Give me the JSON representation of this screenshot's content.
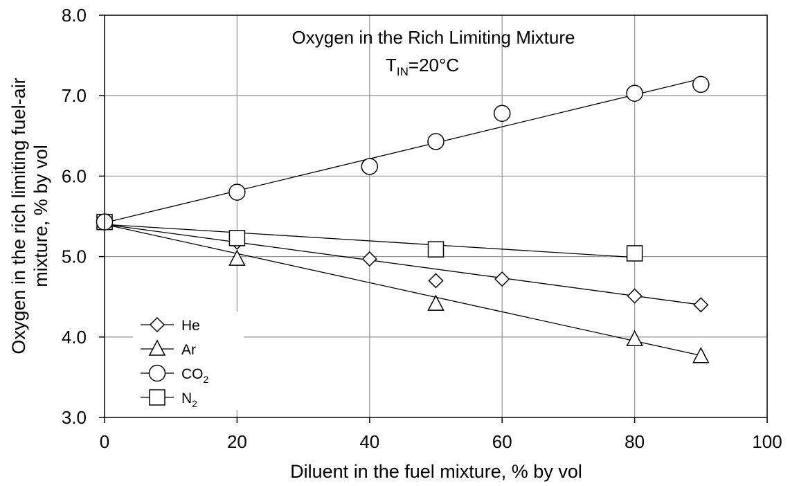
{
  "chart_data": {
    "type": "scatter",
    "title": "Oxygen in the Rich Limiting Mixture",
    "subtitle": {
      "prefix": "T",
      "subscript": "IN",
      "suffix": "=20°C"
    },
    "xlabel": "Diluent in the fuel mixture, % by vol",
    "ylabel": [
      "Oxygen in the rich limiting fuel-air",
      "mixture, % by vol"
    ],
    "xlim": [
      0,
      100
    ],
    "ylim": [
      3.0,
      8.0
    ],
    "xticks": [
      0,
      20,
      40,
      60,
      80,
      100
    ],
    "xtick_labels": [
      "0",
      "20",
      "40",
      "60",
      "80",
      "100"
    ],
    "yticks": [
      3.0,
      4.0,
      5.0,
      6.0,
      7.0,
      8.0
    ],
    "ytick_labels": [
      "3.0",
      "4.0",
      "5.0",
      "6.0",
      "7.0",
      "8.0"
    ],
    "grid": true,
    "legend_position": "bottom-left",
    "series": [
      {
        "name": "He",
        "label_main": "He",
        "label_sub": "",
        "marker": "diamond",
        "x": [
          0,
          20,
          40,
          50,
          60,
          80,
          90
        ],
        "y": [
          5.43,
          5.18,
          4.97,
          4.7,
          4.72,
          4.51,
          4.4
        ],
        "trend": {
          "x": [
            0,
            90
          ],
          "y": [
            5.4,
            4.4
          ]
        }
      },
      {
        "name": "Ar",
        "label_main": "Ar",
        "label_sub": "",
        "marker": "triangle",
        "x": [
          0,
          20,
          50,
          80,
          90
        ],
        "y": [
          5.43,
          4.97,
          4.41,
          3.97,
          3.76
        ],
        "trend": {
          "x": [
            0,
            90
          ],
          "y": [
            5.4,
            3.77
          ]
        }
      },
      {
        "name": "CO2",
        "label_main": "CO",
        "label_sub": "2",
        "marker": "circle",
        "x": [
          0,
          20,
          40,
          50,
          60,
          80,
          90
        ],
        "y": [
          5.43,
          5.8,
          6.12,
          6.43,
          6.78,
          7.03,
          7.14
        ],
        "trend": {
          "x": [
            0,
            90
          ],
          "y": [
            5.42,
            7.21
          ]
        }
      },
      {
        "name": "N2",
        "label_main": "N",
        "label_sub": "2",
        "marker": "square",
        "x": [
          0,
          20,
          50,
          80
        ],
        "y": [
          5.43,
          5.23,
          5.09,
          5.04
        ],
        "trend": {
          "x": [
            0,
            80
          ],
          "y": [
            5.4,
            4.99
          ]
        }
      }
    ]
  }
}
